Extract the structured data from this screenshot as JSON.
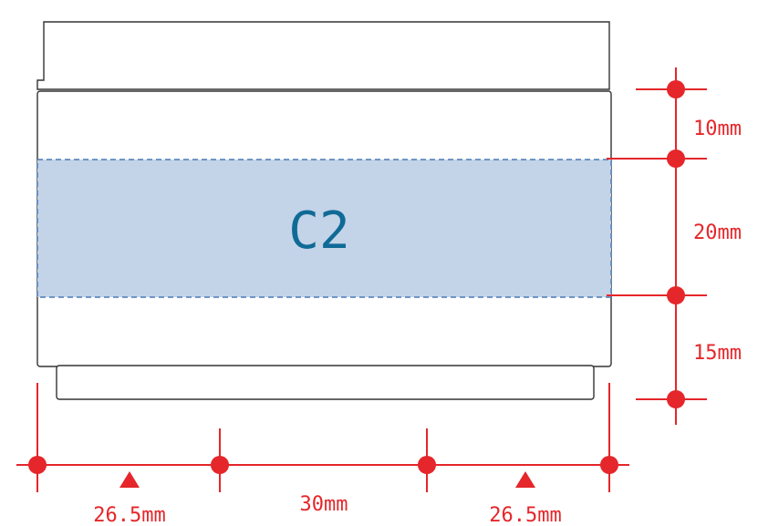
{
  "zone": {
    "label": "C2",
    "fill_color": "#c3d3e8",
    "border_color": "#4a7ab5",
    "text_color": "#0f6a96"
  },
  "vertical_dims": [
    {
      "label": "10mm"
    },
    {
      "label": "20mm"
    },
    {
      "label": "15mm"
    }
  ],
  "horizontal_dims": [
    {
      "label": "26.5mm",
      "marker": "up-triangle"
    },
    {
      "label": "30mm"
    },
    {
      "label": "26.5mm",
      "marker": "up-triangle"
    }
  ],
  "accent_color": "#e5262a"
}
